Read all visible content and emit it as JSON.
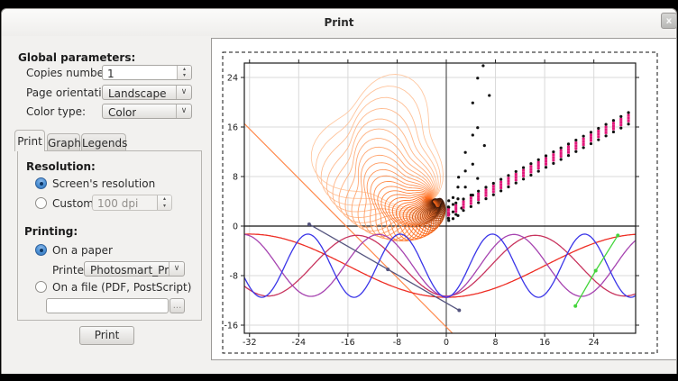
{
  "window": {
    "title": "Print",
    "close_glyph": "x"
  },
  "icons": {
    "chevron_down": "∨",
    "spin_up": "▴",
    "spin_down": "▾"
  },
  "global_params": {
    "heading": "Global parameters:",
    "copies": {
      "label": "Copies number:",
      "value": "1"
    },
    "orientation": {
      "label": "Page orientation:",
      "value": "Landscape"
    },
    "color_type": {
      "label": "Color type:",
      "value": "Color"
    }
  },
  "tabs": [
    {
      "label": "Print",
      "active": true
    },
    {
      "label": "Graph",
      "active": false
    },
    {
      "label": "Legends",
      "active": false
    }
  ],
  "print_tab": {
    "resolution": {
      "heading": "Resolution:",
      "screen_radio_label": "Screen's resolution",
      "screen_selected": true,
      "custom_radio_label": "Custom:",
      "custom_selected": false,
      "custom_value": "100 dpi"
    },
    "printing": {
      "heading": "Printing:",
      "paper_radio_label": "On a paper",
      "paper_selected": true,
      "printer_label": "Printer:",
      "printer_value": "Photosmart_Prem_C",
      "file_radio_label": "On a file (PDF, PostScript)",
      "file_selected": false,
      "file_value": "",
      "browse_label": "..."
    }
  },
  "print_button_label": "Print",
  "chart_data": {
    "type": "line",
    "title": "",
    "xlabel": "",
    "ylabel": "",
    "xlim": [
      -32.84,
      30.79
    ],
    "ylim": [
      -17.3,
      26.33
    ],
    "xticks": [
      -32,
      -24,
      -16,
      -8,
      0,
      8,
      16,
      24
    ],
    "yticks": [
      -16,
      -8,
      0,
      8,
      16,
      24
    ],
    "grid": true,
    "grid_color": "#d9d9d9",
    "axis_color": "#1c1c1c",
    "series": [
      {
        "name": "orange-line",
        "type": "linear",
        "color": "#ff8a4d",
        "slope": -1,
        "intercept": -16.3,
        "x_range": [
          -32.84,
          1.3
        ]
      },
      {
        "name": "red-wave",
        "type": "cosine",
        "color": "#ee2d24",
        "center": -6.4,
        "amp": 5.1,
        "period": 64
      },
      {
        "name": "crimson-wave",
        "type": "cosine",
        "color": "#c8345e",
        "center": -6.4,
        "amp": 4.9,
        "period": 29
      },
      {
        "name": "purple-wave",
        "type": "cosine",
        "color": "#a643b0",
        "center": -6.35,
        "amp": 5.0,
        "period": 22
      },
      {
        "name": "blue-wave",
        "type": "cosine",
        "color": "#3a35e8",
        "center": -6.4,
        "amp": 5.1,
        "period": 15
      },
      {
        "name": "navy-segment",
        "type": "polyline",
        "color": "#55557f",
        "markers": true,
        "points": [
          [
            -22.3,
            0.3
          ],
          [
            -9.5,
            -7.0
          ],
          [
            2.1,
            -13.6
          ]
        ]
      },
      {
        "name": "green-segment",
        "type": "polyline",
        "color": "#44d53c",
        "markers": true,
        "points": [
          [
            21.0,
            -12.9
          ],
          [
            24.3,
            -7.2
          ],
          [
            27.9,
            -1.5
          ]
        ]
      }
    ],
    "scatter_black": {
      "color": "#111111",
      "points": [
        [
          0.4,
          0.9
        ],
        [
          0.4,
          1.9
        ],
        [
          0.4,
          3.0
        ],
        [
          0.4,
          4.1
        ],
        [
          1.1,
          1.2
        ],
        [
          1.1,
          2.3
        ],
        [
          1.1,
          3.5
        ],
        [
          1.1,
          4.6
        ],
        [
          1.9,
          1.7
        ],
        [
          1.9,
          4.4
        ],
        [
          1.9,
          6.3
        ],
        [
          2.0,
          7.9
        ],
        [
          2.5,
          2.9
        ],
        [
          3.1,
          6.3
        ],
        [
          3.1,
          8.9
        ],
        [
          3.1,
          11.9
        ],
        [
          4.3,
          5.0
        ],
        [
          4.3,
          10.0
        ],
        [
          4.3,
          14.7
        ],
        [
          4.3,
          19.9
        ],
        [
          5.1,
          7.7
        ],
        [
          5.1,
          15.9
        ],
        [
          5.1,
          23.9
        ],
        [
          6.0,
          25.9
        ],
        [
          6.2,
          13.0
        ],
        [
          7.0,
          21.1
        ]
      ]
    },
    "dot_band": {
      "x_start": 0.35,
      "x_step": 1.22,
      "count": 25,
      "y_start": 2.2,
      "slope": 0.52,
      "black_offsets": [
        0.9,
        -0.95
      ],
      "magenta_offsets": [
        0.45,
        0,
        -0.45
      ],
      "black_color": "#111111",
      "magenta_color": "#e0187a"
    },
    "spiral": {
      "center": [
        -10.3,
        12.9
      ],
      "radius": 9.9,
      "lobe": 0.2,
      "phase": 5.55,
      "fixed_point": [
        -2.2,
        4.2
      ],
      "iterations": 40,
      "shrink": 0.935,
      "rotation_step": 0.09,
      "color_start": "#ffc9a3",
      "color_mid": "#ff6a1a",
      "color_end": "#38160a"
    }
  }
}
